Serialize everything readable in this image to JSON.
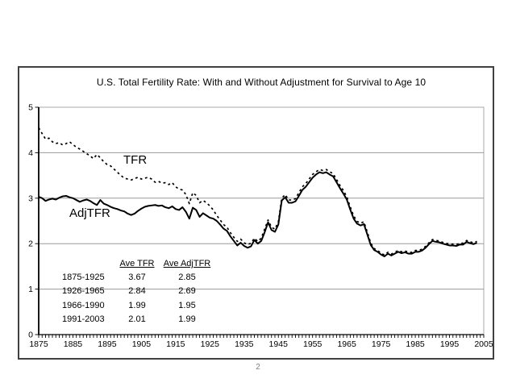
{
  "page": {
    "number": "2",
    "background": "#ffffff"
  },
  "chart": {
    "title": "U.S. Total Fertility Rate: With and Without Adjustment for Survival to Age 10",
    "tfr_label": "TFR",
    "adjtfr_label": "AdjTFR",
    "colors": {
      "line": "#000000",
      "gridline": "#999999",
      "plot_border": "#a9a9a9",
      "frame_border": "#414141",
      "page_number": "#808080"
    }
  },
  "table": {
    "headers": [
      "Ave TFR",
      "Ave AdjTFR"
    ],
    "rows": [
      {
        "period": "1875-1925",
        "ave_tfr": "3.67",
        "ave_adjtfr": "2.85"
      },
      {
        "period": "1926-1965",
        "ave_tfr": "2.84",
        "ave_adjtfr": "2.69"
      },
      {
        "period": "1966-1990",
        "ave_tfr": "1.99",
        "ave_adjtfr": "1.95"
      },
      {
        "period": "1991-2003",
        "ave_tfr": "2.01",
        "ave_adjtfr": "1.99"
      }
    ]
  },
  "chart_data": {
    "type": "line",
    "title": "U.S. Total Fertility Rate: With and Without Adjustment for Survival to Age 10",
    "xlabel": "",
    "ylabel": "",
    "xlim": [
      1875,
      2005
    ],
    "ylim": [
      0,
      5
    ],
    "x_ticks": [
      1875,
      1885,
      1895,
      1905,
      1915,
      1925,
      1935,
      1945,
      1955,
      1965,
      1975,
      1985,
      1995,
      2005
    ],
    "y_ticks": [
      0,
      1,
      2,
      3,
      4,
      5
    ],
    "grid": true,
    "legend_position": "inline-annotations",
    "series": [
      {
        "name": "TFR",
        "style": "dashed",
        "x_start": 1875,
        "x_step": 1,
        "values": [
          4.55,
          4.42,
          4.3,
          4.32,
          4.24,
          4.2,
          4.22,
          4.17,
          4.2,
          4.24,
          4.18,
          4.12,
          4.08,
          4.03,
          3.98,
          3.93,
          3.87,
          3.96,
          3.89,
          3.8,
          3.74,
          3.71,
          3.64,
          3.57,
          3.5,
          3.44,
          3.42,
          3.4,
          3.43,
          3.46,
          3.42,
          3.44,
          3.46,
          3.42,
          3.35,
          3.37,
          3.33,
          3.34,
          3.3,
          3.34,
          3.25,
          3.2,
          3.18,
          3.08,
          2.88,
          3.12,
          3.06,
          2.9,
          2.95,
          2.9,
          2.83,
          2.74,
          2.62,
          2.52,
          2.42,
          2.36,
          2.24,
          2.14,
          2.05,
          2.1,
          2.02,
          1.98,
          2.01,
          2.12,
          2.05,
          2.12,
          2.32,
          2.52,
          2.36,
          2.32,
          2.48,
          3.0,
          3.08,
          2.96,
          2.96,
          2.99,
          3.12,
          3.25,
          3.32,
          3.42,
          3.52,
          3.58,
          3.63,
          3.61,
          3.63,
          3.58,
          3.54,
          3.41,
          3.28,
          3.17,
          3.03,
          2.81,
          2.61,
          2.49,
          2.45,
          2.48,
          2.25,
          2.01,
          1.89,
          1.85,
          1.79,
          1.75,
          1.81,
          1.77,
          1.81,
          1.85,
          1.82,
          1.84,
          1.81,
          1.81,
          1.85,
          1.85,
          1.88,
          1.94,
          2.02,
          2.09,
          2.07,
          2.06,
          2.03,
          2.01,
          1.99,
          1.99,
          1.98,
          2.01,
          2.01,
          2.07,
          2.04,
          2.02,
          2.05
        ]
      },
      {
        "name": "AdjTFR",
        "style": "solid",
        "x_start": 1875,
        "x_step": 1,
        "values": [
          3.03,
          3.0,
          2.94,
          2.97,
          2.99,
          2.97,
          3.01,
          3.04,
          3.05,
          3.02,
          3.0,
          2.96,
          2.92,
          2.95,
          2.97,
          2.94,
          2.89,
          2.85,
          2.96,
          2.88,
          2.85,
          2.81,
          2.78,
          2.76,
          2.73,
          2.71,
          2.66,
          2.63,
          2.66,
          2.72,
          2.77,
          2.81,
          2.83,
          2.84,
          2.85,
          2.83,
          2.84,
          2.8,
          2.78,
          2.82,
          2.76,
          2.74,
          2.8,
          2.7,
          2.55,
          2.79,
          2.74,
          2.59,
          2.67,
          2.62,
          2.57,
          2.55,
          2.5,
          2.42,
          2.33,
          2.28,
          2.16,
          2.06,
          1.96,
          2.02,
          1.95,
          1.91,
          1.94,
          2.08,
          2.0,
          2.06,
          2.25,
          2.47,
          2.3,
          2.26,
          2.42,
          2.95,
          3.02,
          2.9,
          2.9,
          2.93,
          3.05,
          3.18,
          3.25,
          3.35,
          3.45,
          3.52,
          3.57,
          3.55,
          3.57,
          3.52,
          3.48,
          3.35,
          3.22,
          3.1,
          2.97,
          2.75,
          2.55,
          2.44,
          2.4,
          2.43,
          2.2,
          1.97,
          1.86,
          1.82,
          1.76,
          1.72,
          1.78,
          1.74,
          1.78,
          1.82,
          1.79,
          1.81,
          1.78,
          1.78,
          1.82,
          1.82,
          1.85,
          1.91,
          1.99,
          2.06,
          2.04,
          2.03,
          2.0,
          1.98,
          1.96,
          1.96,
          1.95,
          1.98,
          1.98,
          2.04,
          2.01,
          1.99,
          2.02
        ]
      }
    ]
  }
}
